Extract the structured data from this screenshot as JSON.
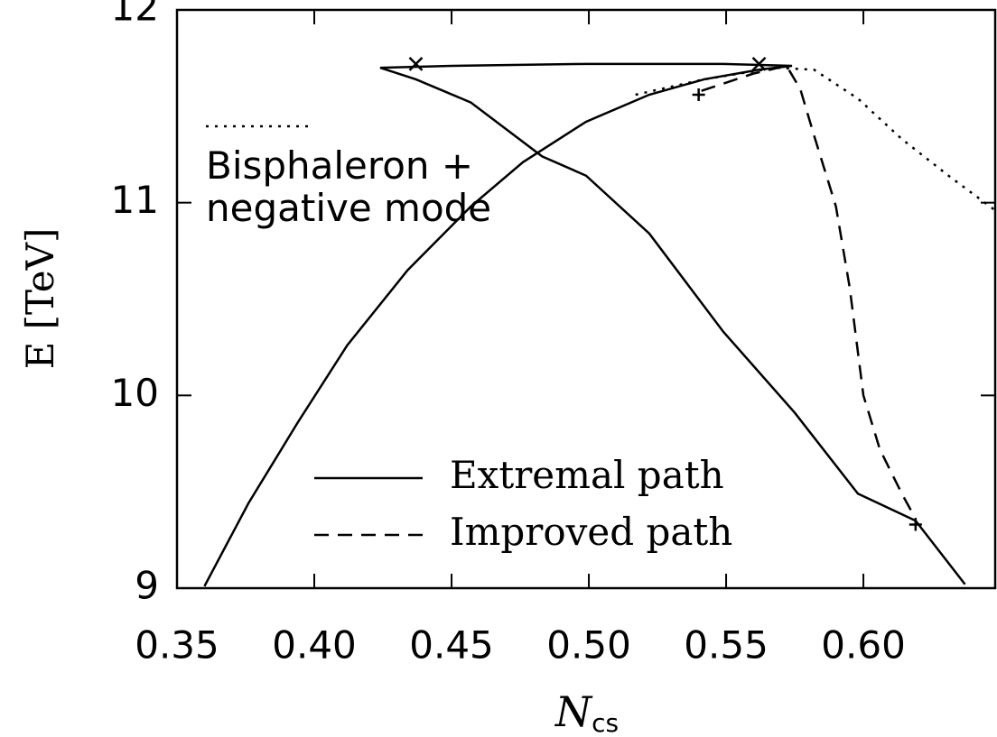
{
  "chart_data": {
    "type": "line",
    "xlabel": {
      "main": "N",
      "sub": "cs"
    },
    "ylabel": "E [TeV]",
    "xlim": [
      0.35,
      0.648
    ],
    "ylim": [
      9,
      12
    ],
    "xticks": [
      {
        "value": 0.35,
        "label": "0.35"
      },
      {
        "value": 0.4,
        "label": "0.40"
      },
      {
        "value": 0.45,
        "label": "0.45"
      },
      {
        "value": 0.5,
        "label": "0.50"
      },
      {
        "value": 0.55,
        "label": "0.55"
      },
      {
        "value": 0.6,
        "label": "0.60"
      }
    ],
    "yticks": [
      9,
      10,
      11,
      12
    ],
    "series": [
      {
        "name": "Extremal path",
        "color": "#000000",
        "dash": "solid",
        "x": [
          0.36,
          0.376,
          0.394,
          0.412,
          0.434,
          0.457,
          0.476,
          0.499,
          0.522,
          0.542,
          0.562,
          0.574,
          0.549,
          0.499,
          0.45,
          0.424,
          0.437,
          0.457,
          0.483,
          0.499,
          0.522,
          0.549,
          0.575,
          0.598,
          0.619,
          0.637
        ],
        "values": [
          9.01,
          9.44,
          9.86,
          10.26,
          10.65,
          10.98,
          11.21,
          11.42,
          11.56,
          11.64,
          11.69,
          11.71,
          11.72,
          11.72,
          11.71,
          11.7,
          11.64,
          11.52,
          11.24,
          11.14,
          10.84,
          10.33,
          9.91,
          9.49,
          9.35,
          9.02
        ]
      },
      {
        "name": "Improved path",
        "color": "#000000",
        "dash": "dashed",
        "x": [
          0.541,
          0.56,
          0.572,
          0.577,
          0.582,
          0.59,
          0.595,
          0.6,
          0.606,
          0.614,
          0.619
        ],
        "values": [
          11.58,
          11.67,
          11.71,
          11.59,
          11.35,
          10.98,
          10.56,
          10.0,
          9.72,
          9.49,
          9.36
        ]
      },
      {
        "name": "Bisphaleron + negative mode",
        "color": "#000000",
        "dash": "dotted",
        "x": [
          0.517,
          0.542,
          0.568,
          0.582,
          0.598,
          0.614,
          0.631,
          0.648
        ],
        "values": [
          11.56,
          11.64,
          11.7,
          11.69,
          11.54,
          11.33,
          11.14,
          10.96
        ]
      }
    ],
    "cross_points": {
      "x": [
        0.437,
        0.562
      ],
      "values": [
        11.72,
        11.72
      ]
    },
    "plus_points": {
      "x": [
        0.54,
        0.619
      ],
      "values": [
        11.56,
        9.33
      ]
    }
  }
}
